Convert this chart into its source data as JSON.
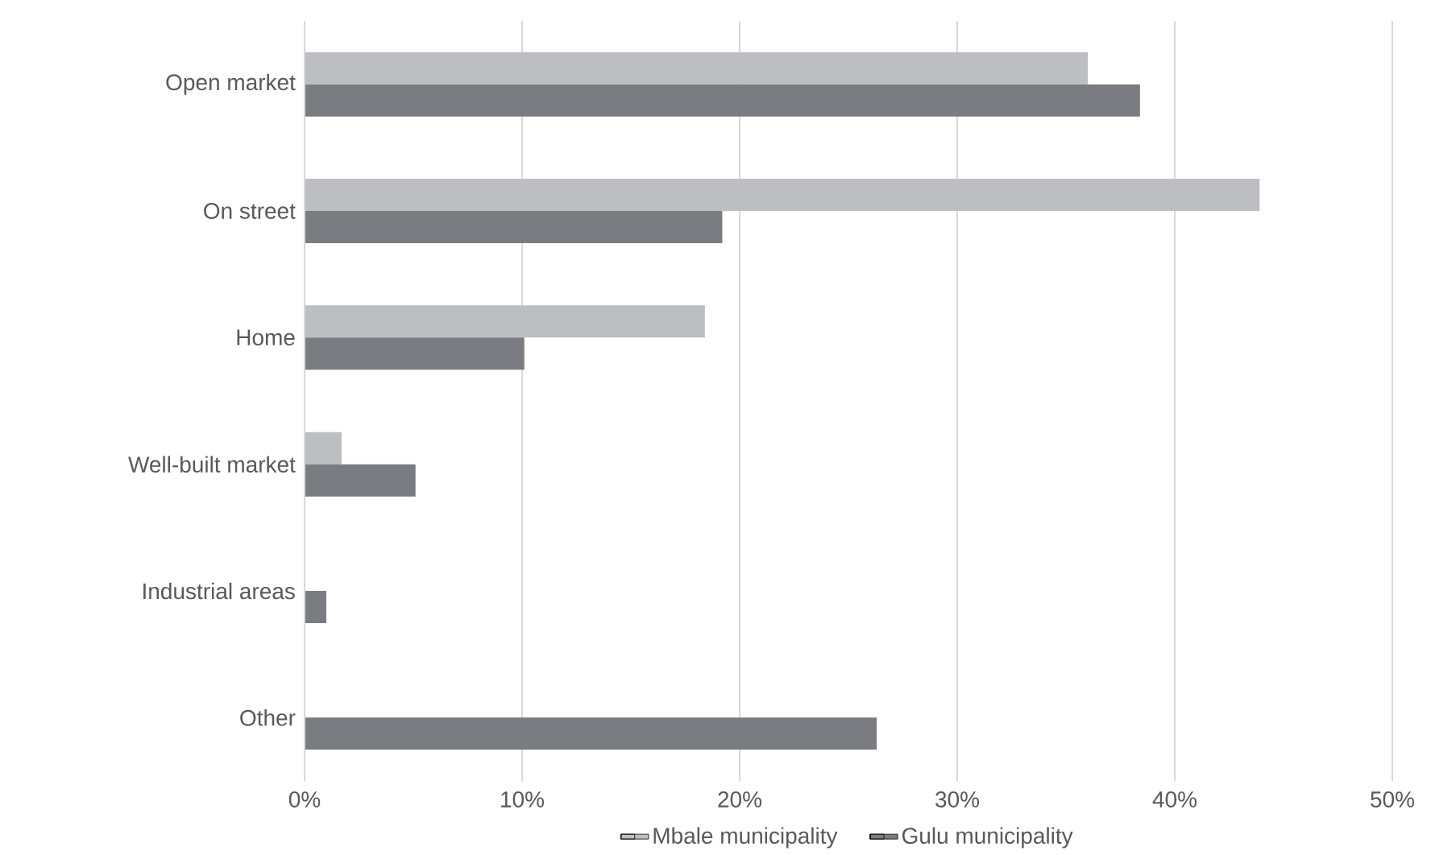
{
  "chart_data": {
    "type": "bar",
    "orientation": "horizontal",
    "categories": [
      "Open market",
      "On street",
      "Home",
      "Well-built market",
      "Industrial areas",
      "Other"
    ],
    "series": [
      {
        "name": "Mbale municipality",
        "color": "#bdbec2",
        "values": [
          36.0,
          43.9,
          18.4,
          1.7,
          0,
          0
        ]
      },
      {
        "name": "Gulu municipality",
        "color": "#7b7c81",
        "values": [
          38.4,
          19.2,
          10.1,
          5.1,
          1.0,
          26.3
        ]
      }
    ],
    "xlim": [
      0,
      50
    ],
    "xticks": [
      {
        "value": 0,
        "label": "0%"
      },
      {
        "value": 10,
        "label": "10%"
      },
      {
        "value": 20,
        "label": "20%"
      },
      {
        "value": 30,
        "label": "30%"
      },
      {
        "value": 40,
        "label": "40%"
      },
      {
        "value": 50,
        "label": "50%"
      }
    ],
    "grid": "x",
    "legend": "bottom"
  }
}
